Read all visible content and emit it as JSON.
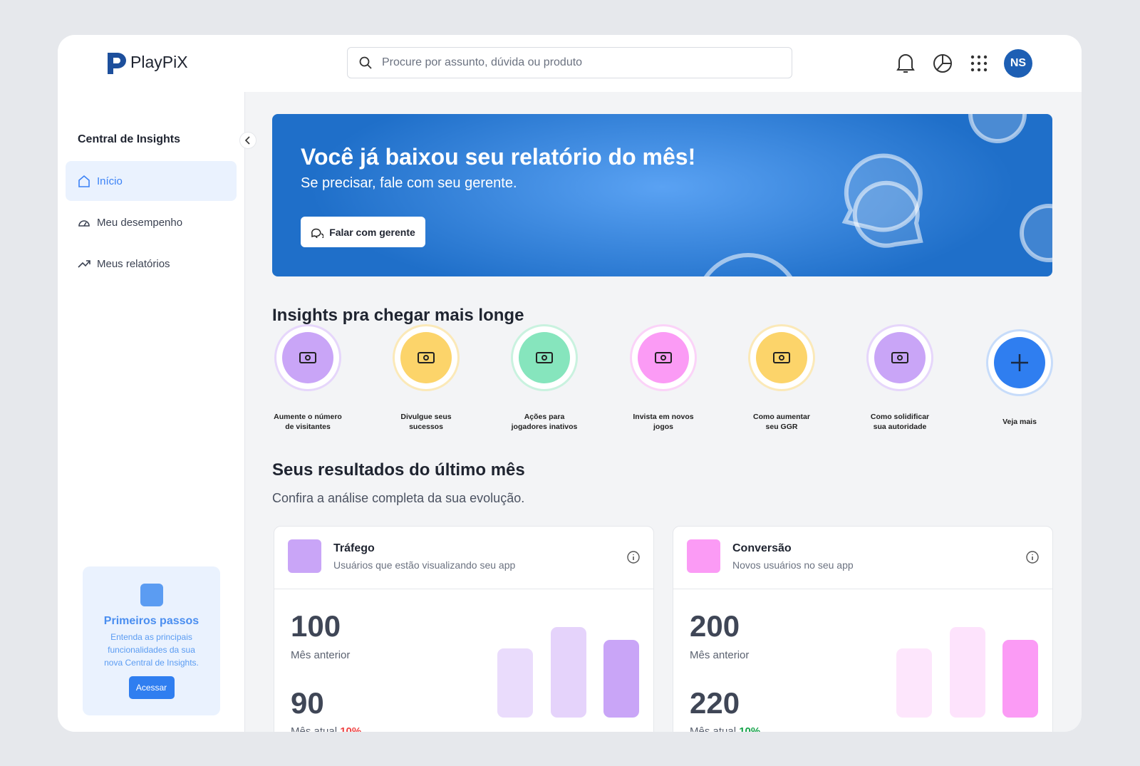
{
  "header": {
    "logo": "PlayPiX",
    "search_placeholder": "Procure por assunto, dúvida ou produto",
    "avatar": "NS"
  },
  "sidebar": {
    "title": "Central de Insights",
    "nav": [
      "Início",
      "Meu desempenho",
      "Meus relatórios"
    ],
    "promo": {
      "title": "Primeiros passos",
      "text": "Entenda as principais funcionalidades da sua nova Central de Insights.",
      "button": "Acessar"
    }
  },
  "banner": {
    "title": "Você já baixou seu relatório do mês!",
    "subtitle": "Se precisar, fale com seu gerente.",
    "button": "Falar com gerente"
  },
  "insights": {
    "title": "Insights pra chegar mais longe",
    "items": [
      "Aumente o número de visitantes",
      "Divulgue seus sucessos",
      "Ações para jogadores inativos",
      "Invista em novos jogos",
      "Como aumentar seu GGR",
      "Como solidificar sua autoridade",
      "Veja mais"
    ]
  },
  "results": {
    "title": "Seus resultados do último mês",
    "subtitle": "Confira a análise completa da sua evolução.",
    "cards": [
      {
        "title": "Tráfego",
        "subtitle": "Usuários que estão visualizando seu app",
        "previous_value": "100",
        "previous_label": "Mês anterior",
        "current_value": "90",
        "current_label": "Mês atual",
        "change": "10%"
      },
      {
        "title": "Conversão",
        "subtitle": "Novos usuários no seu app",
        "previous_value": "200",
        "previous_label": "Mês anterior",
        "current_value": "220",
        "current_label": "Mês atual",
        "change": "10%"
      }
    ]
  }
}
